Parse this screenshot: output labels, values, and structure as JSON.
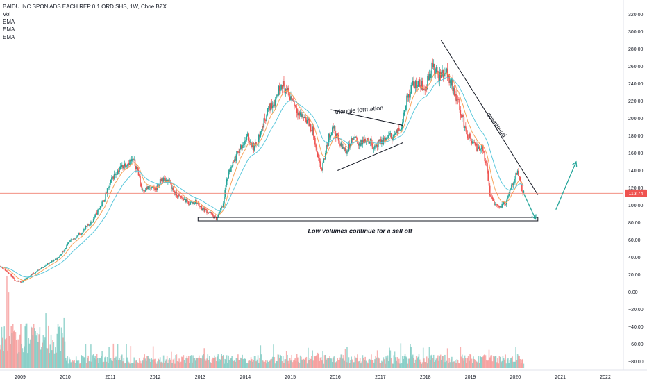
{
  "header": {
    "symbol_line": "BAIDU INC SPON ADS EACH REP 0.1 ORD SHS, 1W, Cboe BZX",
    "indicators": [
      "Vol",
      "EMA",
      "EMA",
      "EMA"
    ]
  },
  "colors": {
    "up": "#26a69a",
    "down": "#ef5350",
    "ema_fast": "#f7a35c",
    "ema_slow": "#5bc8dc",
    "price_line": "#f08070",
    "price_tag": "#ef5350",
    "annotation": "#131722",
    "arrow": "#26a69a",
    "axis_text": "#131722"
  },
  "chart_data": {
    "type": "candlestick",
    "title": "BAIDU INC SPON ADS EACH REP 0.1 ORD SHS, 1W, Cboe BZX",
    "x_ticks": [
      "2009",
      "2010",
      "2011",
      "2012",
      "2013",
      "2014",
      "2015",
      "2016",
      "2017",
      "2018",
      "2019",
      "2020",
      "2021",
      "2022"
    ],
    "y_ticks": [
      320,
      300,
      280,
      260,
      240,
      220,
      200,
      180,
      160,
      140,
      120,
      100,
      80,
      60,
      40,
      20,
      0,
      -20,
      -40,
      -60,
      -80
    ],
    "y_tick_labels": [
      "320.00",
      "300.00",
      "280.00",
      "260.00",
      "240.00",
      "220.00",
      "200.00",
      "180.00",
      "160.00",
      "140.00",
      "120.00",
      "100.00",
      "80.00",
      "60.00",
      "40.00",
      "20.00",
      "0.00",
      "−20.00",
      "−40.00",
      "−60.00",
      "−80.00"
    ],
    "ylim": [
      -90,
      330
    ],
    "xlim": [
      2008.55,
      2022.4
    ],
    "last_price": 113.74,
    "last_price_label": "113.74",
    "price_series": [
      [
        2008.55,
        30
      ],
      [
        2008.75,
        22
      ],
      [
        2008.9,
        12
      ],
      [
        2009.05,
        12
      ],
      [
        2009.3,
        22
      ],
      [
        2009.6,
        32
      ],
      [
        2009.85,
        40
      ],
      [
        2010.1,
        58
      ],
      [
        2010.35,
        68
      ],
      [
        2010.6,
        82
      ],
      [
        2010.85,
        105
      ],
      [
        2011.05,
        132
      ],
      [
        2011.2,
        142
      ],
      [
        2011.35,
        148
      ],
      [
        2011.5,
        152
      ],
      [
        2011.6,
        142
      ],
      [
        2011.7,
        118
      ],
      [
        2011.85,
        120
      ],
      [
        2012.0,
        118
      ],
      [
        2012.15,
        130
      ],
      [
        2012.3,
        128
      ],
      [
        2012.45,
        112
      ],
      [
        2012.6,
        108
      ],
      [
        2012.75,
        102
      ],
      [
        2012.9,
        104
      ],
      [
        2013.05,
        96
      ],
      [
        2013.2,
        92
      ],
      [
        2013.35,
        84
      ],
      [
        2013.5,
        100
      ],
      [
        2013.6,
        132
      ],
      [
        2013.75,
        150
      ],
      [
        2013.9,
        168
      ],
      [
        2014.05,
        178
      ],
      [
        2014.2,
        166
      ],
      [
        2014.35,
        185
      ],
      [
        2014.5,
        210
      ],
      [
        2014.65,
        220
      ],
      [
        2014.8,
        242
      ],
      [
        2014.95,
        228
      ],
      [
        2015.05,
        222
      ],
      [
        2015.2,
        205
      ],
      [
        2015.35,
        200
      ],
      [
        2015.5,
        185
      ],
      [
        2015.6,
        155
      ],
      [
        2015.7,
        140
      ],
      [
        2015.85,
        178
      ],
      [
        2015.95,
        190
      ],
      [
        2016.1,
        170
      ],
      [
        2016.25,
        162
      ],
      [
        2016.4,
        178
      ],
      [
        2016.55,
        170
      ],
      [
        2016.7,
        178
      ],
      [
        2016.85,
        168
      ],
      [
        2017.0,
        172
      ],
      [
        2017.15,
        178
      ],
      [
        2017.3,
        180
      ],
      [
        2017.45,
        188
      ],
      [
        2017.55,
        215
      ],
      [
        2017.7,
        238
      ],
      [
        2017.85,
        240
      ],
      [
        2018.0,
        235
      ],
      [
        2018.15,
        260
      ],
      [
        2018.3,
        248
      ],
      [
        2018.45,
        255
      ],
      [
        2018.6,
        238
      ],
      [
        2018.75,
        215
      ],
      [
        2018.9,
        185
      ],
      [
        2019.0,
        175
      ],
      [
        2019.15,
        165
      ],
      [
        2019.25,
        168
      ],
      [
        2019.35,
        148
      ],
      [
        2019.45,
        108
      ],
      [
        2019.55,
        102
      ],
      [
        2019.65,
        98
      ],
      [
        2019.8,
        104
      ],
      [
        2019.92,
        122
      ],
      [
        2020.05,
        140
      ],
      [
        2020.15,
        118
      ],
      [
        2020.2,
        113.74
      ]
    ],
    "series": [
      {
        "type": "candles"
      },
      {
        "type": "ema_fast"
      },
      {
        "type": "ema_slow"
      },
      {
        "type": "volume"
      }
    ],
    "annotations": {
      "triangle_label": "triangle formation",
      "downtrend_label": "downtrend",
      "support_note": "Low volumes continue for a sell off"
    },
    "drawings": {
      "triangle_upper": [
        [
          2015.9,
          210
        ],
        [
          2017.5,
          192
        ]
      ],
      "triangle_lower": [
        [
          2016.05,
          140
        ],
        [
          2017.5,
          172
        ]
      ],
      "downtrend_line": [
        [
          2018.35,
          290
        ],
        [
          2020.5,
          112
        ]
      ],
      "support_box": {
        "x0": 2012.95,
        "x1": 2020.5,
        "y0": 82,
        "y1": 86
      },
      "arrow_down": [
        [
          2020.2,
          112
        ],
        [
          2020.45,
          84
        ]
      ],
      "arrow_up": [
        [
          2020.9,
          95
        ],
        [
          2021.35,
          150
        ]
      ]
    },
    "grid": false,
    "legend": "top-left"
  }
}
